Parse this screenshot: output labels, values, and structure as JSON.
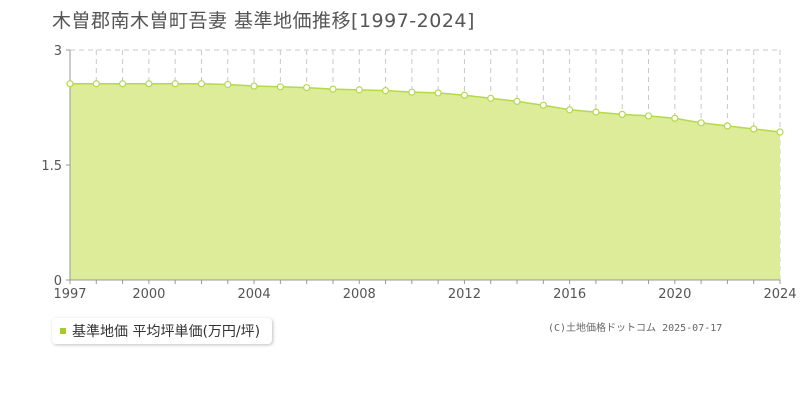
{
  "page_title": "木曽郡南木曽町吾妻 基準地価推移[1997-2024]",
  "legend": {
    "label": "基準地価 平均坪単価(万円/坪)",
    "color": "#a5cc2a"
  },
  "credit": "(C)土地価格ドットコム 2025-07-17",
  "colors": {
    "fill": "#dcec98",
    "line": "#b5d94a",
    "grid": "#c8c8c8",
    "axis": "#999999"
  },
  "chart_data": {
    "type": "area",
    "title": "木曽郡南木曽町吾妻 基準地価推移[1997-2024]",
    "xlabel": "",
    "ylabel": "",
    "xlim": [
      1997,
      2024
    ],
    "ylim": [
      0,
      3
    ],
    "x_tick_labels": [
      "1997",
      "2000",
      "2004",
      "2008",
      "2012",
      "2016",
      "2020",
      "2024"
    ],
    "y_tick_labels": [
      "0",
      "1.5",
      "3"
    ],
    "grid": true,
    "x": [
      1997,
      1998,
      1999,
      2000,
      2001,
      2002,
      2003,
      2004,
      2005,
      2006,
      2007,
      2008,
      2009,
      2010,
      2011,
      2012,
      2013,
      2014,
      2015,
      2016,
      2017,
      2018,
      2019,
      2020,
      2021,
      2022,
      2023,
      2024
    ],
    "series": [
      {
        "name": "基準地価 平均坪単価(万円/坪)",
        "values": [
          2.56,
          2.56,
          2.56,
          2.56,
          2.56,
          2.56,
          2.55,
          2.53,
          2.52,
          2.51,
          2.49,
          2.48,
          2.47,
          2.45,
          2.44,
          2.41,
          2.37,
          2.33,
          2.28,
          2.22,
          2.19,
          2.16,
          2.14,
          2.11,
          2.05,
          2.01,
          1.97,
          1.93
        ]
      }
    ]
  }
}
